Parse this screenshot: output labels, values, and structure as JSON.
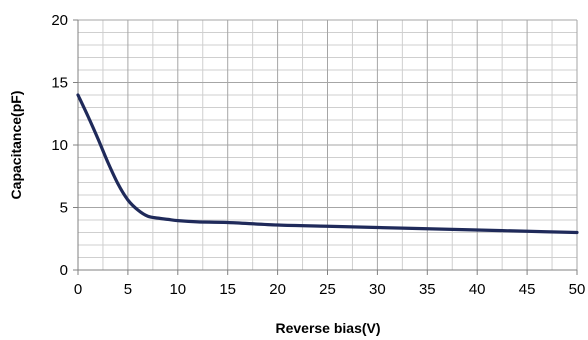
{
  "chart_data": {
    "type": "line",
    "title": "",
    "xlabel": "Reverse bias(V)",
    "ylabel": "Capacitance(pF)",
    "xlim": [
      0,
      50
    ],
    "ylim": [
      0,
      20
    ],
    "x_ticks": [
      0,
      5,
      10,
      15,
      20,
      25,
      30,
      35,
      40,
      45,
      50
    ],
    "y_ticks": [
      0,
      5,
      10,
      15,
      20
    ],
    "x_tick_labels": [
      "0",
      "5",
      "10",
      "15",
      "20",
      "25",
      "30",
      "35",
      "40",
      "45",
      "50"
    ],
    "y_tick_labels": [
      "0",
      "5",
      "10",
      "15",
      "20"
    ],
    "grid": true,
    "legend": "none",
    "line_color": "#1f2a5a",
    "grid_color": "#a6a6a6",
    "series": [
      {
        "x": [
          0,
          1,
          2,
          3,
          4,
          5,
          6,
          7,
          8,
          9,
          10,
          12,
          15,
          20,
          25,
          30,
          35,
          40,
          45,
          50
        ],
        "values": [
          14.0,
          12.3,
          10.5,
          8.6,
          6.9,
          5.6,
          4.8,
          4.3,
          4.15,
          4.05,
          3.95,
          3.85,
          3.8,
          3.6,
          3.5,
          3.4,
          3.3,
          3.2,
          3.1,
          3.0
        ]
      }
    ]
  }
}
